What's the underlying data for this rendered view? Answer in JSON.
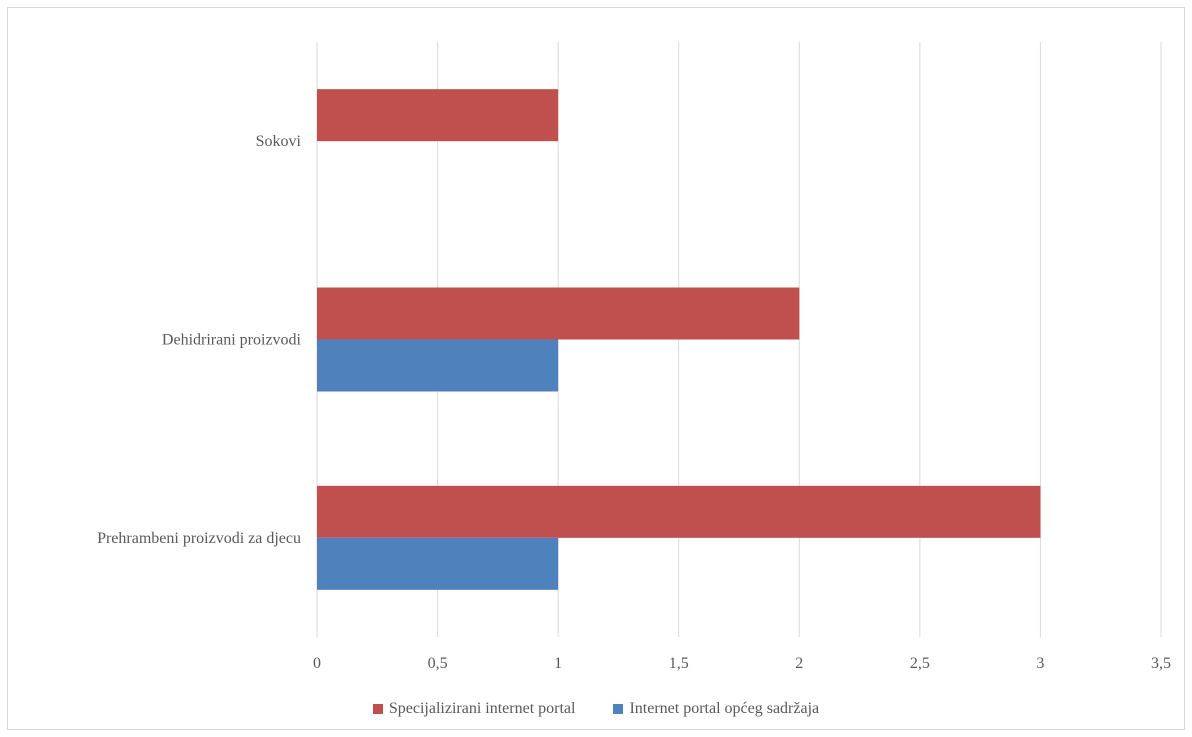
{
  "chart_data": {
    "type": "bar",
    "orientation": "horizontal",
    "categories": [
      "Sokovi",
      "Dehidrirani proizvodi",
      "Prehrambeni proizvodi za djecu"
    ],
    "series": [
      {
        "name": "Specijalizirani internet portal",
        "color": "#c0504d",
        "values": [
          1,
          2,
          3
        ]
      },
      {
        "name": "Internet portal općeg sadržaja",
        "color": "#4f81bd",
        "values": [
          0,
          1,
          1
        ]
      }
    ],
    "xlim": [
      0,
      3.5
    ],
    "x_ticks": [
      "0",
      "0,5",
      "1",
      "1,5",
      "2",
      "2,5",
      "3",
      "3,5"
    ],
    "grid": "vertical",
    "legend_position": "bottom"
  }
}
